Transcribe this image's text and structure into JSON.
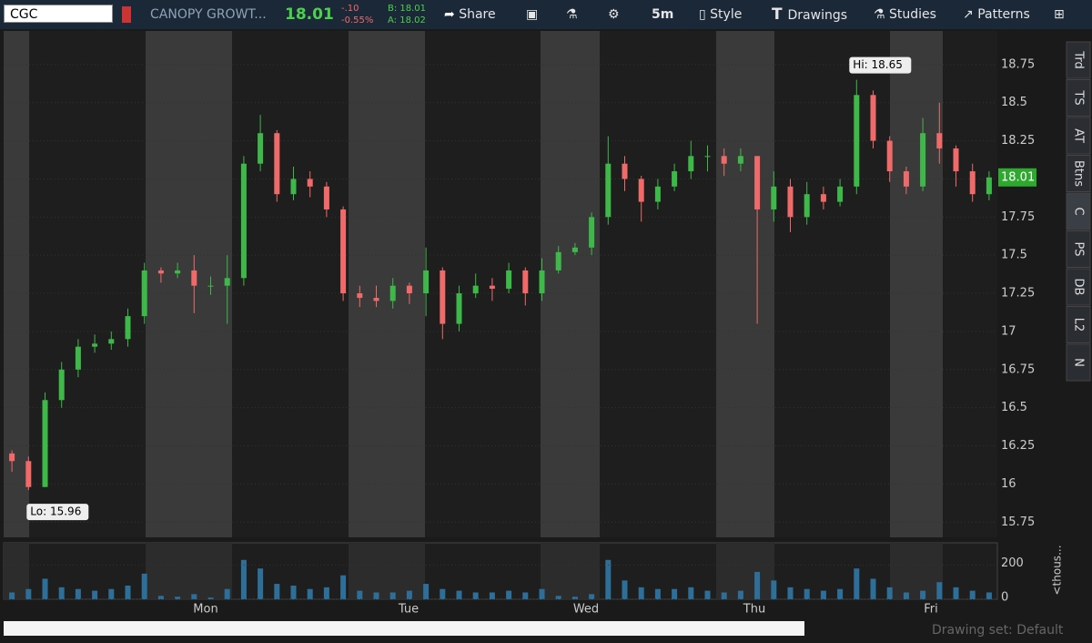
{
  "toolbar": {
    "symbol": "CGC",
    "company": "CANOPY GROWT...",
    "last": "18.01",
    "change": "-.10",
    "change_pct": "-0.55%",
    "bid": "B: 18.01",
    "ask": "A: 18.02",
    "share": "Share",
    "interval": "5m",
    "style": "Style",
    "drawings": "Drawings",
    "studies": "Studies",
    "patterns": "Patterns"
  },
  "sidebar_tabs": [
    "Trd",
    "TS",
    "AT",
    "Btns",
    "C",
    "PS",
    "DB",
    "L2",
    "N"
  ],
  "chart_data": {
    "type": "candlestick",
    "up_color": "#3fb84a",
    "down_color": "#f06a6a",
    "open": [
      16.2,
      16.15,
      15.98,
      16.55,
      16.75,
      16.9,
      16.92,
      16.95,
      17.1,
      17.4,
      17.38,
      17.4,
      17.3,
      17.3,
      17.35,
      18.1,
      18.3,
      17.9,
      18.0,
      17.95,
      17.8,
      17.25,
      17.22,
      17.2,
      17.3,
      17.25,
      17.4,
      17.05,
      17.25,
      17.3,
      17.28,
      17.4,
      17.25,
      17.4,
      17.52,
      17.55,
      17.75,
      18.1,
      18.0,
      17.85,
      17.95,
      18.05,
      18.15,
      18.15,
      18.1,
      18.15,
      17.8,
      17.95,
      17.75,
      17.9,
      17.85,
      17.95,
      18.55,
      18.25,
      18.05,
      17.95,
      18.3,
      18.2,
      18.05,
      17.9
    ],
    "high": [
      16.22,
      16.18,
      16.6,
      16.8,
      16.95,
      16.98,
      17.0,
      17.15,
      17.45,
      17.42,
      17.45,
      17.5,
      17.36,
      17.5,
      18.15,
      18.42,
      18.32,
      18.08,
      18.05,
      17.98,
      17.82,
      17.3,
      17.3,
      17.35,
      17.32,
      17.55,
      17.42,
      17.3,
      17.38,
      17.35,
      17.45,
      17.42,
      17.48,
      17.56,
      17.58,
      17.78,
      18.28,
      18.15,
      18.02,
      18.0,
      18.1,
      18.25,
      18.22,
      18.2,
      18.2,
      18.15,
      18.05,
      18.0,
      17.98,
      17.95,
      18.0,
      18.65,
      18.58,
      18.28,
      18.08,
      18.4,
      18.5,
      18.22,
      18.1,
      18.05
    ],
    "low": [
      16.08,
      15.96,
      15.98,
      16.5,
      16.7,
      16.86,
      16.88,
      16.9,
      17.05,
      17.32,
      17.35,
      17.12,
      17.24,
      17.05,
      17.3,
      18.05,
      17.85,
      17.86,
      17.88,
      17.75,
      17.2,
      17.16,
      17.16,
      17.15,
      17.18,
      17.1,
      16.95,
      17.0,
      17.22,
      17.2,
      17.25,
      17.17,
      17.2,
      17.38,
      17.5,
      17.5,
      17.7,
      17.92,
      17.72,
      17.8,
      17.92,
      18.0,
      18.05,
      18.02,
      18.05,
      17.05,
      17.72,
      17.65,
      17.7,
      17.8,
      17.82,
      17.9,
      18.2,
      17.98,
      17.9,
      17.92,
      18.1,
      17.95,
      17.85,
      17.86
    ],
    "close": [
      16.15,
      15.98,
      16.55,
      16.75,
      16.9,
      16.92,
      16.95,
      17.1,
      17.4,
      17.38,
      17.4,
      17.3,
      17.3,
      17.35,
      18.1,
      18.3,
      17.9,
      18.0,
      17.95,
      17.8,
      17.25,
      17.22,
      17.2,
      17.3,
      17.25,
      17.4,
      17.05,
      17.25,
      17.3,
      17.28,
      17.4,
      17.25,
      17.4,
      17.52,
      17.55,
      17.75,
      18.1,
      18.0,
      17.85,
      17.95,
      18.05,
      18.15,
      18.15,
      18.1,
      18.15,
      17.8,
      17.95,
      17.75,
      17.9,
      17.85,
      17.95,
      18.55,
      18.25,
      18.05,
      17.95,
      18.3,
      18.2,
      18.05,
      17.9,
      18.01
    ],
    "ylim": [
      15.65,
      18.97
    ],
    "yticks": [
      15.75,
      16,
      16.25,
      16.5,
      16.75,
      17,
      17.25,
      17.5,
      17.75,
      18,
      18.25,
      18.5,
      18.75
    ],
    "last_price": 18.01,
    "hi_label": "Hi: 18.65",
    "lo_label": "Lo: 15.96",
    "day_labels": [
      "Mon",
      "Tue",
      "Wed",
      "Thu",
      "Fri"
    ],
    "volume": {
      "color": "#2e6f9a",
      "values": [
        40,
        60,
        120,
        70,
        60,
        50,
        60,
        80,
        150,
        20,
        15,
        30,
        10,
        60,
        230,
        180,
        90,
        80,
        60,
        70,
        140,
        50,
        40,
        40,
        50,
        90,
        60,
        50,
        40,
        40,
        50,
        40,
        60,
        20,
        15,
        30,
        230,
        110,
        70,
        60,
        60,
        70,
        50,
        40,
        50,
        160,
        110,
        70,
        60,
        50,
        60,
        180,
        120,
        70,
        40,
        50,
        100,
        70,
        50,
        40
      ],
      "ylim": [
        0,
        330
      ],
      "yticks": [
        0,
        200
      ],
      "unit_label": "<thous..."
    }
  },
  "footer": {
    "drawing_set": "Drawing set: Default"
  }
}
